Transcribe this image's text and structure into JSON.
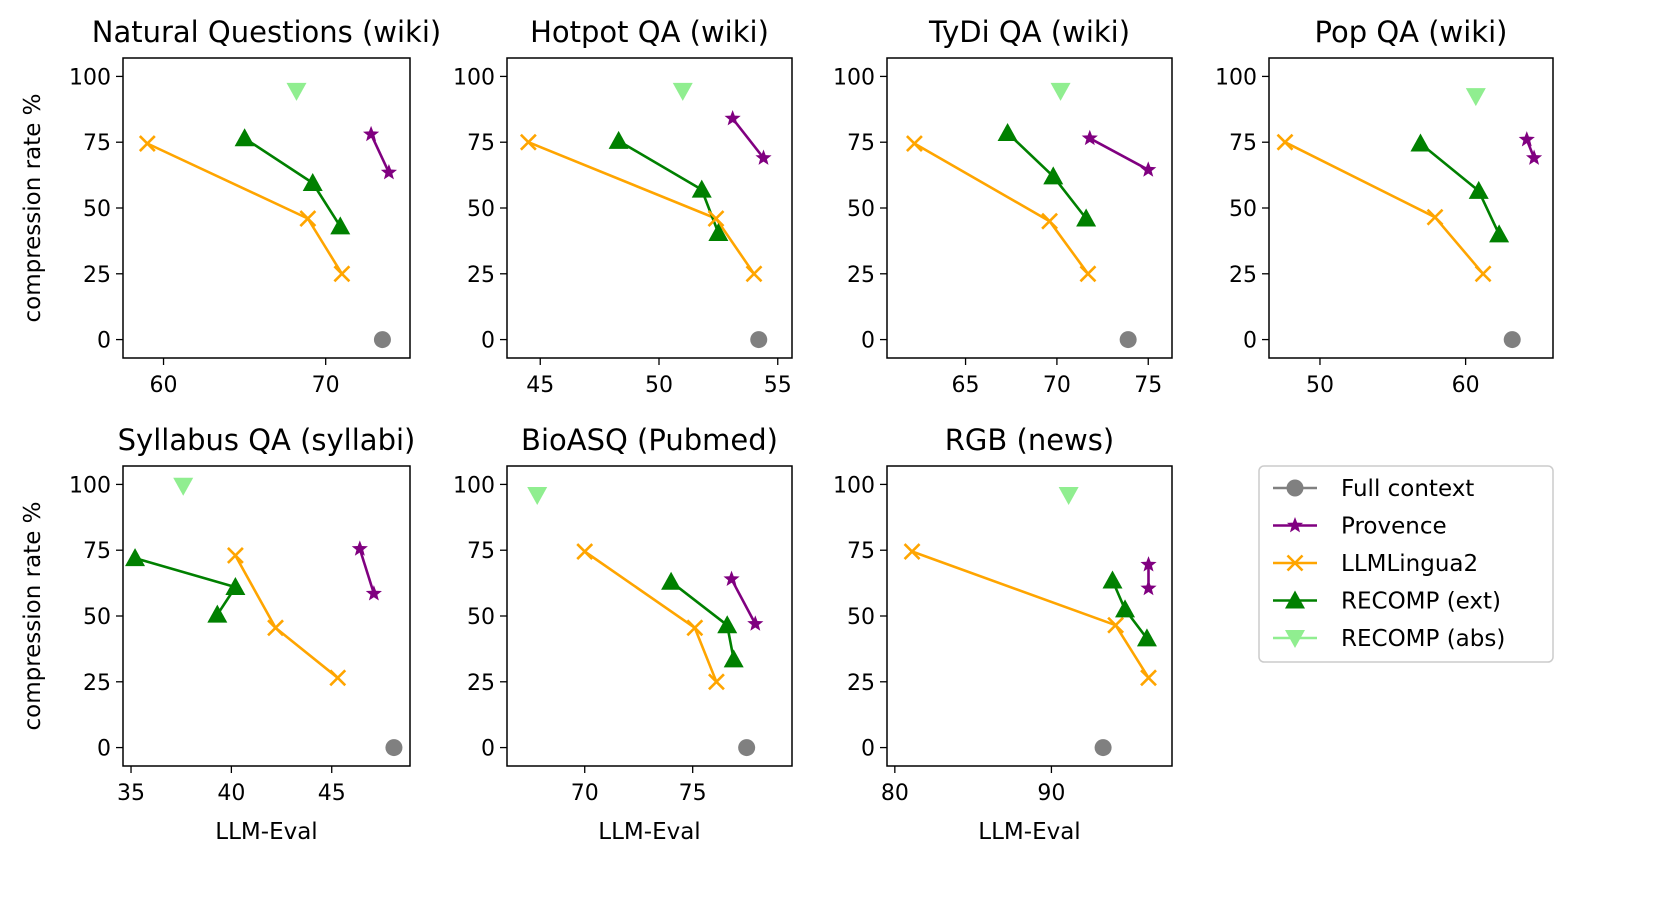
{
  "series_meta": {
    "full": {
      "name": "Full context",
      "color": "#808080",
      "marker": "circle",
      "line": false
    },
    "prov": {
      "name": "Provence",
      "color": "#800080",
      "marker": "star",
      "line": true
    },
    "llml": {
      "name": "LLMLingua2",
      "color": "#FFA500",
      "marker": "x",
      "line": true
    },
    "rext": {
      "name": "RECOMP (ext)",
      "color": "#008000",
      "marker": "triangle-up",
      "line": true
    },
    "rabs": {
      "name": "RECOMP (abs)",
      "color": "#90EE90",
      "marker": "triangle-down",
      "line": false
    }
  },
  "legend_order": [
    "full",
    "prov",
    "llml",
    "rext",
    "rabs"
  ],
  "chart_data": [
    {
      "type": "line",
      "title": "Natural Questions (wiki)",
      "xlabel": "",
      "ylabel": "compression rate %",
      "xlim": [
        57.5,
        75.2
      ],
      "xticks": [
        60,
        70
      ],
      "ylim": [
        -7,
        107
      ],
      "yticks": [
        0,
        25,
        50,
        75,
        100
      ],
      "series": {
        "full": [
          [
            73.5,
            0
          ]
        ],
        "prov": [
          [
            72.8,
            78
          ],
          [
            73.9,
            63.5
          ]
        ],
        "llml": [
          [
            59,
            74.5
          ],
          [
            68.9,
            46
          ],
          [
            71,
            25
          ]
        ],
        "rext": [
          [
            65,
            76.5
          ],
          [
            69.2,
            59.5
          ],
          [
            70.9,
            43
          ]
        ],
        "rabs": [
          [
            68.2,
            94.5
          ]
        ]
      }
    },
    {
      "type": "line",
      "title": "Hotpot QA (wiki)",
      "xlabel": "",
      "ylabel": "",
      "xlim": [
        43.6,
        55.6
      ],
      "xticks": [
        45,
        50,
        55
      ],
      "ylim": [
        -7,
        107
      ],
      "yticks": [
        0,
        25,
        50,
        75,
        100
      ],
      "series": {
        "full": [
          [
            54.2,
            0
          ]
        ],
        "prov": [
          [
            53.1,
            84
          ],
          [
            54.4,
            69
          ]
        ],
        "llml": [
          [
            44.5,
            75
          ],
          [
            52.4,
            46
          ],
          [
            54,
            25
          ]
        ],
        "rext": [
          [
            48.3,
            75.5
          ],
          [
            51.8,
            57
          ],
          [
            52.5,
            40.5
          ]
        ],
        "rabs": [
          [
            51,
            94.5
          ]
        ]
      }
    },
    {
      "type": "line",
      "title": "TyDi QA (wiki)",
      "xlabel": "",
      "ylabel": "",
      "xlim": [
        60.7,
        76.3
      ],
      "xticks": [
        65,
        70,
        75
      ],
      "ylim": [
        -7,
        107
      ],
      "yticks": [
        0,
        25,
        50,
        75,
        100
      ],
      "series": {
        "full": [
          [
            73.9,
            0
          ]
        ],
        "prov": [
          [
            71.8,
            76.5
          ],
          [
            75,
            64.5
          ]
        ],
        "llml": [
          [
            62.2,
            74.5
          ],
          [
            69.6,
            45
          ],
          [
            71.7,
            25
          ]
        ],
        "rext": [
          [
            67.3,
            78.5
          ],
          [
            69.8,
            62
          ],
          [
            71.6,
            46
          ]
        ],
        "rabs": [
          [
            70.2,
            94.5
          ]
        ]
      }
    },
    {
      "type": "line",
      "title": "Pop QA (wiki)",
      "xlabel": "",
      "ylabel": "",
      "xlim": [
        46.5,
        66
      ],
      "xticks": [
        50,
        60
      ],
      "ylim": [
        -7,
        107
      ],
      "yticks": [
        0,
        25,
        50,
        75,
        100
      ],
      "series": {
        "full": [
          [
            63.2,
            0
          ]
        ],
        "prov": [
          [
            64.2,
            76
          ],
          [
            64.7,
            69
          ]
        ],
        "llml": [
          [
            47.6,
            75
          ],
          [
            57.9,
            46.5
          ],
          [
            61.2,
            25
          ]
        ],
        "rext": [
          [
            56.9,
            74.5
          ],
          [
            60.9,
            56.5
          ],
          [
            62.3,
            40
          ]
        ],
        "rabs": [
          [
            60.7,
            92.5
          ]
        ]
      }
    },
    {
      "type": "line",
      "title": "Syllabus QA (syllabi)",
      "xlabel": "LLM-Eval",
      "ylabel": "compression rate %",
      "xlim": [
        34.6,
        48.9
      ],
      "xticks": [
        35,
        40,
        45
      ],
      "ylim": [
        -7,
        107
      ],
      "yticks": [
        0,
        25,
        50,
        75,
        100
      ],
      "series": {
        "full": [
          [
            48.1,
            0
          ]
        ],
        "prov": [
          [
            46.4,
            75.5
          ],
          [
            47.1,
            58.5
          ]
        ],
        "llml": [
          [
            40.2,
            73
          ],
          [
            42.2,
            45.5
          ],
          [
            45.3,
            26.5
          ]
        ],
        "rext": [
          [
            35.2,
            72
          ],
          [
            40.2,
            61
          ],
          [
            39.3,
            50.5
          ]
        ],
        "rabs": [
          [
            37.6,
            99.5
          ]
        ]
      }
    },
    {
      "type": "line",
      "title": "BioASQ (Pubmed)",
      "xlabel": "LLM-Eval",
      "ylabel": "",
      "xlim": [
        66.4,
        79.6
      ],
      "xticks": [
        70,
        75
      ],
      "ylim": [
        -7,
        107
      ],
      "yticks": [
        0,
        25,
        50,
        75,
        100
      ],
      "series": {
        "full": [
          [
            77.5,
            0
          ]
        ],
        "prov": [
          [
            76.8,
            64
          ],
          [
            77.9,
            47
          ]
        ],
        "llml": [
          [
            70,
            74.5
          ],
          [
            75.1,
            45.5
          ],
          [
            76.1,
            25
          ]
        ],
        "rext": [
          [
            74,
            63
          ],
          [
            76.6,
            46.5
          ],
          [
            76.9,
            33.5
          ]
        ],
        "rabs": [
          [
            67.8,
            96
          ]
        ]
      }
    },
    {
      "type": "line",
      "title": "RGB (news)",
      "xlabel": "LLM-Eval",
      "ylabel": "",
      "xlim": [
        79.5,
        97.7
      ],
      "xticks": [
        80,
        90
      ],
      "ylim": [
        -7,
        107
      ],
      "yticks": [
        0,
        25,
        50,
        75,
        100
      ],
      "series": {
        "full": [
          [
            93.3,
            0
          ]
        ],
        "prov": [
          [
            96.2,
            69.5
          ],
          [
            96.2,
            60.5
          ]
        ],
        "llml": [
          [
            81.1,
            74.5
          ],
          [
            94.1,
            46.5
          ],
          [
            96.2,
            26.5
          ]
        ],
        "rext": [
          [
            93.9,
            63.5
          ],
          [
            94.7,
            52.5
          ],
          [
            96.1,
            41.5
          ]
        ],
        "rabs": [
          [
            91.1,
            96
          ]
        ]
      }
    }
  ]
}
